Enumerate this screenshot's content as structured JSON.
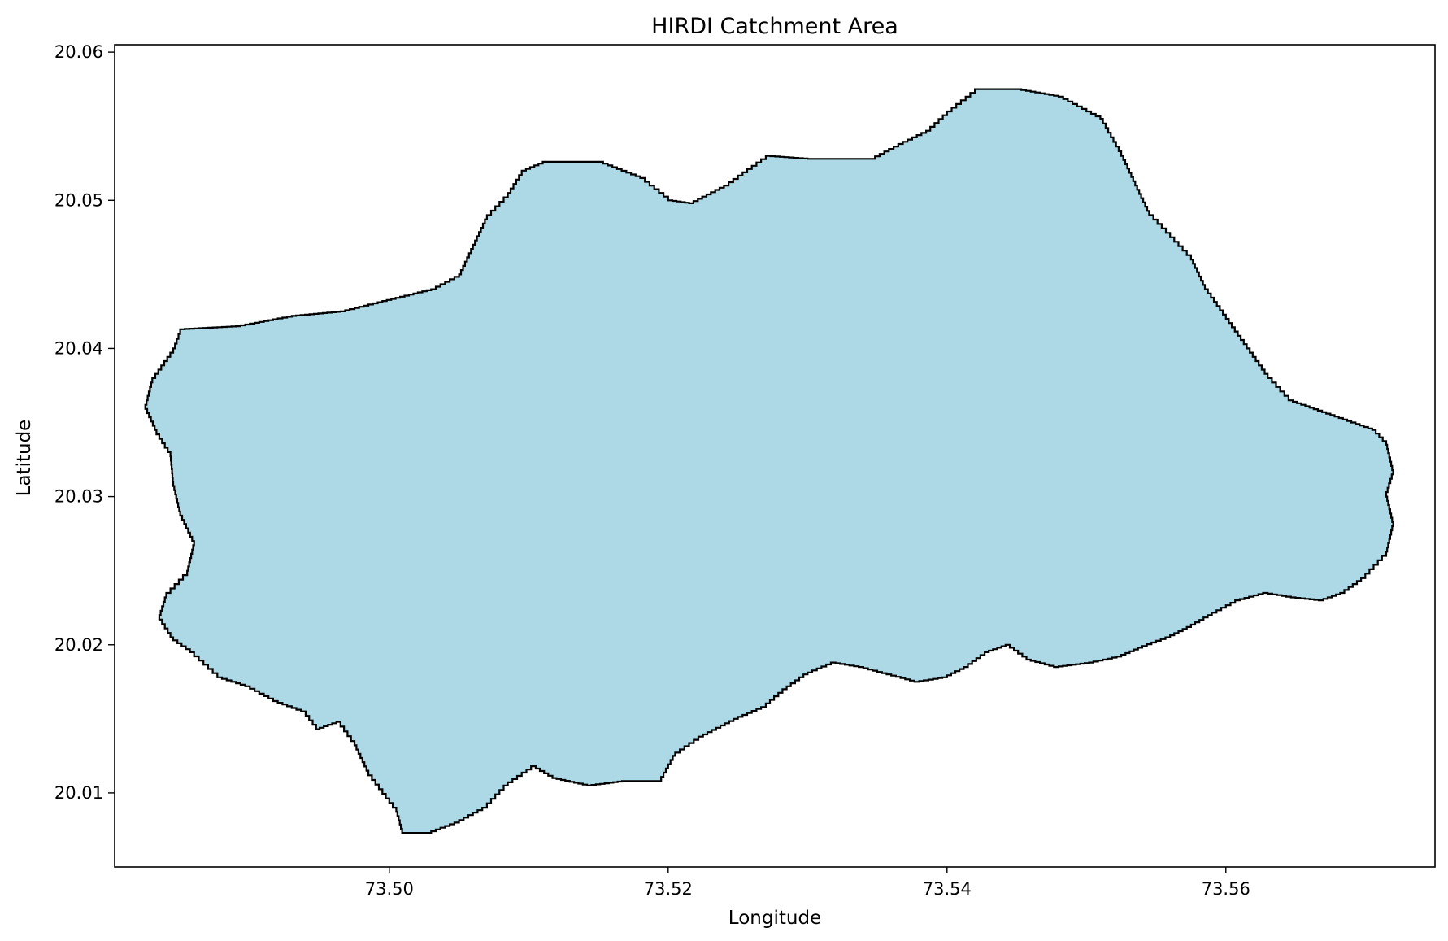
{
  "chart_data": {
    "type": "map",
    "title": "HIRDI Catchment Area",
    "xlabel": "Longitude",
    "ylabel": "Latitude",
    "xlim": [
      73.4803,
      73.575
    ],
    "ylim": [
      20.005,
      20.0605
    ],
    "xticks": [
      73.5,
      73.52,
      73.54,
      73.56
    ],
    "xtick_labels": [
      "73.50",
      "73.52",
      "73.54",
      "73.56"
    ],
    "yticks": [
      20.01,
      20.02,
      20.03,
      20.04,
      20.05,
      20.06
    ],
    "ytick_labels": [
      "20.01",
      "20.02",
      "20.03",
      "20.04",
      "20.05",
      "20.06"
    ],
    "grid": false,
    "series": [
      {
        "fill_color": "#add8e6",
        "edge_color": "#000000",
        "boundary": [
          [
            73.485,
            20.0413
          ],
          [
            73.489,
            20.0415
          ],
          [
            73.493,
            20.0422
          ],
          [
            73.4965,
            20.0425
          ],
          [
            73.4995,
            20.0432
          ],
          [
            73.503,
            20.044
          ],
          [
            73.505,
            20.045
          ],
          [
            73.506,
            20.047
          ],
          [
            73.507,
            20.049
          ],
          [
            73.5085,
            20.0505
          ],
          [
            73.5095,
            20.052
          ],
          [
            73.511,
            20.0526
          ],
          [
            73.515,
            20.0526
          ],
          [
            73.518,
            20.0515
          ],
          [
            73.52,
            20.05
          ],
          [
            73.5215,
            20.0498
          ],
          [
            73.524,
            20.051
          ],
          [
            73.527,
            20.053
          ],
          [
            73.53,
            20.0528
          ],
          [
            73.5345,
            20.0528
          ],
          [
            73.5365,
            20.0538
          ],
          [
            73.5385,
            20.0547
          ],
          [
            73.54,
            20.056
          ],
          [
            73.542,
            20.0575
          ],
          [
            73.545,
            20.0575
          ],
          [
            73.548,
            20.057
          ],
          [
            73.551,
            20.0555
          ],
          [
            73.5525,
            20.053
          ],
          [
            73.5535,
            20.051
          ],
          [
            73.5545,
            20.049
          ],
          [
            73.556,
            20.0475
          ],
          [
            73.5575,
            20.046
          ],
          [
            73.5585,
            20.044
          ],
          [
            73.56,
            20.042
          ],
          [
            73.5615,
            20.04
          ],
          [
            73.563,
            20.038
          ],
          [
            73.5645,
            20.0365
          ],
          [
            73.566,
            20.036
          ],
          [
            73.5675,
            20.0355
          ],
          [
            73.569,
            20.035
          ],
          [
            73.5705,
            20.0345
          ],
          [
            73.5715,
            20.0335
          ],
          [
            73.572,
            20.0315
          ],
          [
            73.5715,
            20.03
          ],
          [
            73.572,
            20.028
          ],
          [
            73.5715,
            20.026
          ],
          [
            73.57,
            20.0245
          ],
          [
            73.5685,
            20.0235
          ],
          [
            73.567,
            20.023
          ],
          [
            73.565,
            20.0232
          ],
          [
            73.563,
            20.0235
          ],
          [
            73.561,
            20.023
          ],
          [
            73.559,
            20.022
          ],
          [
            73.5575,
            20.0212
          ],
          [
            73.556,
            20.0205
          ],
          [
            73.554,
            20.0198
          ],
          [
            73.5525,
            20.0192
          ],
          [
            73.5505,
            20.0188
          ],
          [
            73.548,
            20.0185
          ],
          [
            73.546,
            20.019
          ],
          [
            73.5445,
            20.02
          ],
          [
            73.543,
            20.0195
          ],
          [
            73.5415,
            20.0185
          ],
          [
            73.54,
            20.0178
          ],
          [
            73.538,
            20.0175
          ],
          [
            73.536,
            20.018
          ],
          [
            73.534,
            20.0185
          ],
          [
            73.532,
            20.0188
          ],
          [
            73.53,
            20.018
          ],
          [
            73.5285,
            20.017
          ],
          [
            73.527,
            20.0158
          ],
          [
            73.525,
            20.015
          ],
          [
            73.5225,
            20.0138
          ],
          [
            73.5205,
            20.0125
          ],
          [
            73.5195,
            20.0108
          ],
          [
            73.517,
            20.0108
          ],
          [
            73.5145,
            20.0105
          ],
          [
            73.512,
            20.011
          ],
          [
            73.5105,
            20.0118
          ],
          [
            73.5085,
            20.0105
          ],
          [
            73.507,
            20.009
          ],
          [
            73.505,
            20.008
          ],
          [
            73.503,
            20.0073
          ],
          [
            73.501,
            20.0073
          ],
          [
            73.5005,
            20.009
          ],
          [
            73.4985,
            20.0115
          ],
          [
            73.4975,
            20.0135
          ],
          [
            73.4965,
            20.0148
          ],
          [
            73.495,
            20.0143
          ],
          [
            73.494,
            20.0155
          ],
          [
            73.492,
            20.0162
          ],
          [
            73.49,
            20.0172
          ],
          [
            73.488,
            20.0178
          ],
          [
            73.486,
            20.0195
          ],
          [
            73.4845,
            20.0205
          ],
          [
            73.4835,
            20.022
          ],
          [
            73.484,
            20.0235
          ],
          [
            73.4855,
            20.025
          ],
          [
            73.486,
            20.027
          ],
          [
            73.485,
            20.029
          ],
          [
            73.4845,
            20.031
          ],
          [
            73.4843,
            20.033
          ],
          [
            73.4833,
            20.0345
          ],
          [
            73.4825,
            20.0362
          ],
          [
            73.483,
            20.038
          ],
          [
            73.4845,
            20.04
          ]
        ]
      }
    ]
  }
}
